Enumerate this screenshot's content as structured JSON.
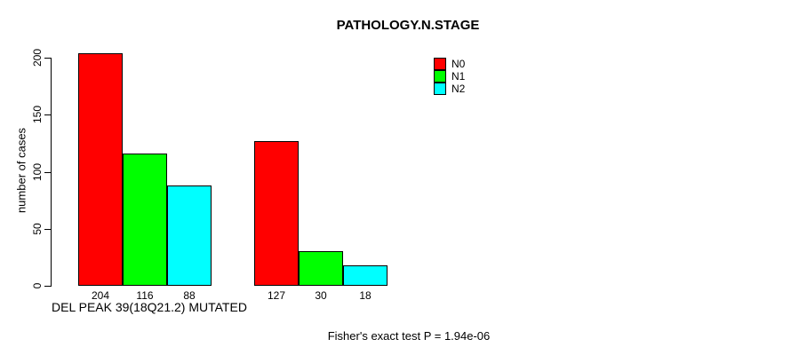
{
  "chart_data": {
    "type": "bar",
    "title": "PATHOLOGY.N.STAGE",
    "xlabel": "DEL PEAK 39(18Q21.2) MUTATED",
    "ylabel": "number of cases",
    "ylim": [
      0,
      200
    ],
    "yticks": [
      0,
      50,
      100,
      150,
      200
    ],
    "grid": false,
    "legend_position": "top-right",
    "group_count": 2,
    "series": [
      {
        "name": "N0",
        "color": "#ff0000",
        "values": [
          204,
          127
        ]
      },
      {
        "name": "N1",
        "color": "#00ff00",
        "values": [
          116,
          30
        ]
      },
      {
        "name": "N2",
        "color": "#00ffff",
        "values": [
          88,
          18
        ]
      }
    ],
    "bar_value_labels": [
      [
        "204",
        "116",
        "88"
      ],
      [
        "127",
        "30",
        "18"
      ]
    ]
  },
  "footer": {
    "text": "Fisher's exact test P = 1.94e-06"
  }
}
